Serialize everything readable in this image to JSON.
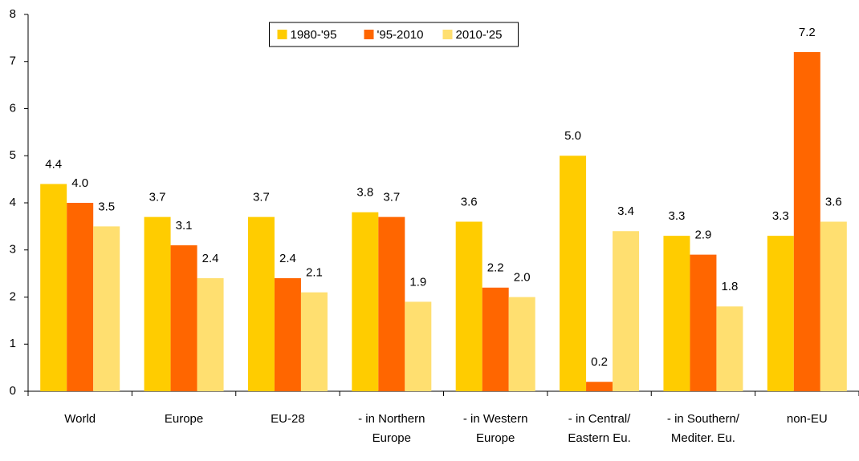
{
  "chart_data": {
    "type": "bar",
    "categories": [
      "World",
      "Europe",
      "EU-28",
      "- in Northern\nEurope",
      "- in Western\nEurope",
      "- in Central/\nEastern Eu.",
      "- in Southern/\nMediter. Eu.",
      "non-EU"
    ],
    "series": [
      {
        "name": "1980-'95",
        "color": "#ffcc00",
        "values": [
          4.4,
          3.7,
          3.7,
          3.8,
          3.6,
          5.0,
          3.3,
          3.3
        ],
        "value_labels": [
          "4.4",
          "3.7",
          "3.7",
          "3.8",
          "3.6",
          "5.0",
          "3.3",
          "3.3"
        ]
      },
      {
        "name": "'95-2010",
        "color": "#ff6600",
        "values": [
          4.0,
          3.1,
          2.4,
          3.7,
          2.2,
          0.2,
          2.9,
          7.2
        ],
        "value_labels": [
          "4.0",
          "3.1",
          "2.4",
          "3.7",
          "2.2",
          "0.2",
          "2.9",
          "7.2"
        ]
      },
      {
        "name": "2010-'25",
        "color": "#ffdf70",
        "values": [
          3.5,
          2.4,
          2.1,
          1.9,
          2.0,
          3.4,
          1.8,
          3.6
        ],
        "value_labels": [
          "3.5",
          "2.4",
          "2.1",
          "1.9",
          "2.0",
          "3.4",
          "1.8",
          "3.6"
        ]
      }
    ],
    "ylim": [
      0,
      8
    ],
    "yticks": [
      0,
      1,
      2,
      3,
      4,
      5,
      6,
      7,
      8
    ],
    "grid": false,
    "legend": "top-center"
  }
}
